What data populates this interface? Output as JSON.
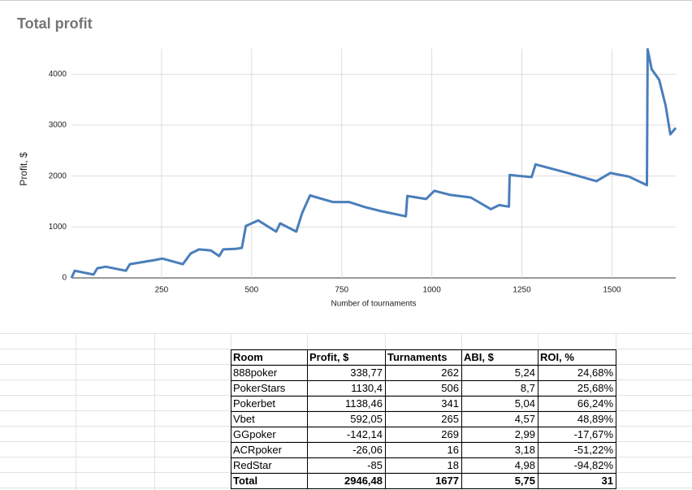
{
  "chart_data": {
    "type": "line",
    "title": "Total profit",
    "x_label": "Number of tournaments",
    "y_label": "Profit, $",
    "color": "#4a7ebb",
    "grid": true,
    "x": [
      0,
      9,
      61,
      72,
      95,
      151,
      162,
      230,
      252,
      309,
      331,
      354,
      387,
      410,
      421,
      455,
      473,
      484,
      518,
      568,
      579,
      624,
      640,
      662,
      725,
      770,
      815,
      860,
      928,
      932,
      984,
      1007,
      1052,
      1108,
      1164,
      1187,
      1214,
      1216,
      1277,
      1288,
      1378,
      1457,
      1495,
      1547,
      1597,
      1599,
      1610,
      1631,
      1649,
      1662,
      1677
    ],
    "values": [
      0,
      140,
      65,
      190,
      220,
      140,
      270,
      350,
      380,
      270,
      480,
      560,
      540,
      430,
      560,
      570,
      590,
      1020,
      1130,
      910,
      1070,
      910,
      1270,
      1620,
      1490,
      1490,
      1390,
      1310,
      1210,
      1610,
      1550,
      1710,
      1630,
      1580,
      1350,
      1430,
      1400,
      2020,
      1980,
      2230,
      2060,
      1900,
      2060,
      1990,
      1820,
      4490,
      4100,
      3890,
      3380,
      2820,
      2946
    ],
    "xlim": [
      0,
      1677
    ],
    "ylim": [
      0,
      4500
    ],
    "xticks": [
      250,
      500,
      750,
      1000,
      1250,
      1500
    ],
    "yticks": [
      0,
      1000,
      2000,
      3000,
      4000
    ]
  },
  "table": {
    "header": [
      "Room",
      "Profit, $",
      "Turnaments",
      "ABI, $",
      "ROI, %"
    ],
    "rows": [
      [
        "888poker",
        "338,77",
        "262",
        "5,24",
        "24,68%"
      ],
      [
        "PokerStars",
        "1130,4",
        "506",
        "8,7",
        "25,68%"
      ],
      [
        "Pokerbet",
        "1138,46",
        "341",
        "5,04",
        "66,24%"
      ],
      [
        "Vbet",
        "592,05",
        "265",
        "4,57",
        "48,89%"
      ],
      [
        "GGpoker",
        "-142,14",
        "269",
        "2,99",
        "-17,67%"
      ],
      [
        "ACRpoker",
        "-26,06",
        "16",
        "3,18",
        "-51,22%"
      ],
      [
        "RedStar",
        "-85",
        "18",
        "4,98",
        "-94,82%"
      ]
    ],
    "total": [
      "Total",
      "2946,48",
      "1677",
      "5,75",
      "31"
    ]
  }
}
